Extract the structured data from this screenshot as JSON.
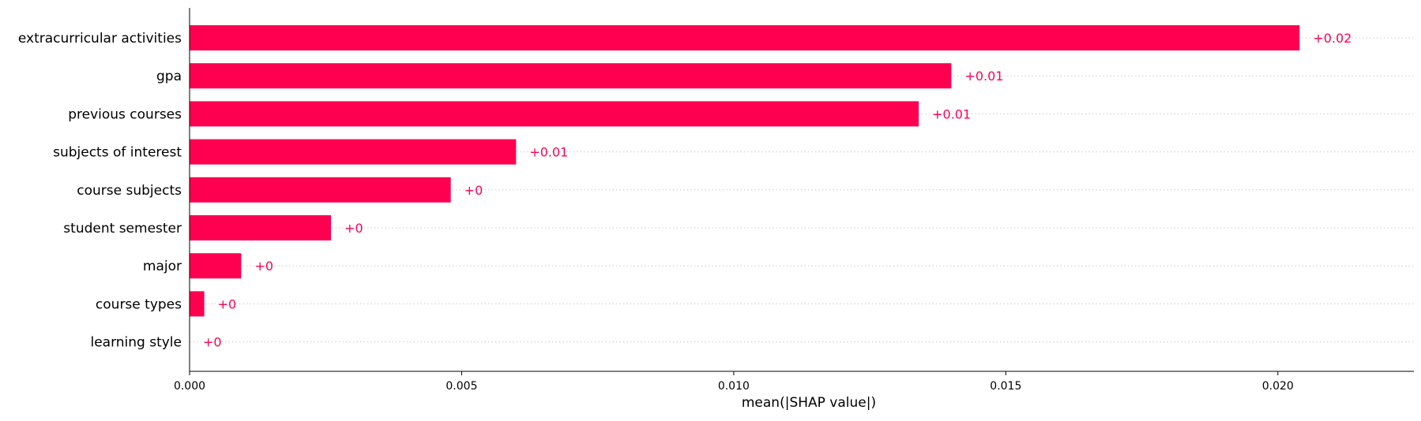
{
  "chart_data": {
    "type": "bar",
    "orientation": "horizontal",
    "xlabel": "mean(|SHAP value|)",
    "xlim": [
      0,
      0.0225
    ],
    "xticks": [
      0.0,
      0.005,
      0.01,
      0.015,
      0.02
    ],
    "xtick_labels": [
      "0.000",
      "0.005",
      "0.010",
      "0.015",
      "0.020"
    ],
    "grid": "horizontal dotted guide lines per category",
    "bar_color": "#ff0051",
    "label_color": "#ff0051",
    "categories": [
      "extracurricular activities",
      "gpa",
      "previous courses",
      "subjects of interest",
      "course subjects",
      "student semester",
      "major",
      "course types",
      "learning style"
    ],
    "values": [
      0.0204,
      0.014,
      0.0134,
      0.006,
      0.0048,
      0.0026,
      0.00095,
      0.00027,
      0.0
    ],
    "value_labels": [
      "+0.02",
      "+0.01",
      "+0.01",
      "+0.01",
      "+0",
      "+0",
      "+0",
      "+0",
      "+0"
    ]
  }
}
